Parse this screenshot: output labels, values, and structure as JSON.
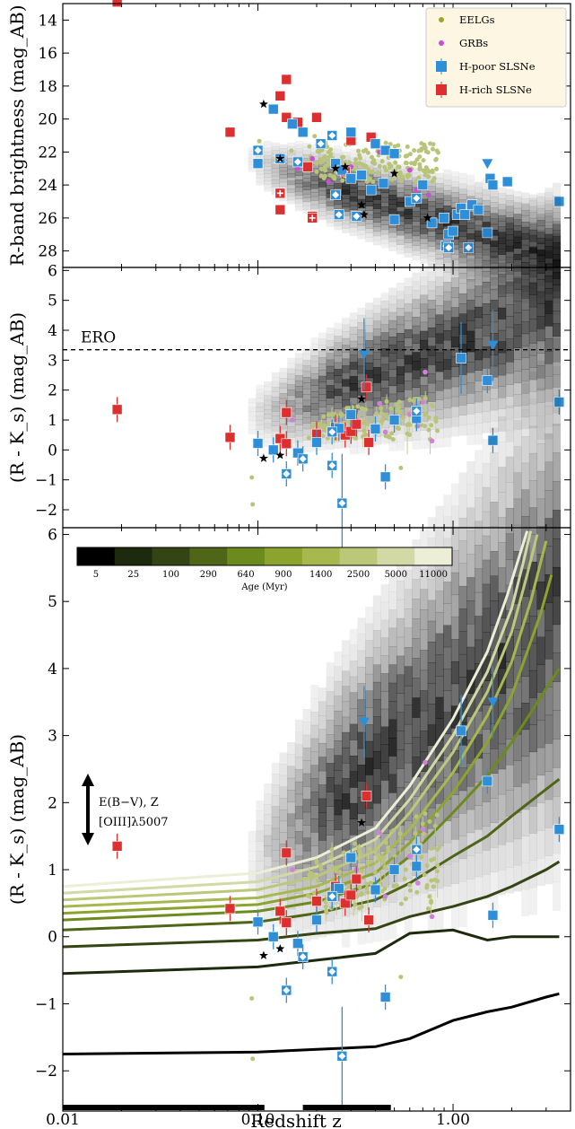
{
  "chart_data": [
    {
      "type": "scatter",
      "panel": "top",
      "ylabel": "R-band brightness (mag_AB)",
      "xscale": "log",
      "xlim": [
        0.01,
        4
      ],
      "ylim": [
        13,
        29
      ],
      "y_inverted": true,
      "yticks": [
        "14",
        "16",
        "18",
        "20",
        "22",
        "24",
        "26",
        "28"
      ],
      "legend": {
        "placement": "top-right",
        "entries": [
          {
            "label": "EELGs",
            "color": "#9fa626",
            "marker": "dot"
          },
          {
            "label": "GRBs",
            "color": "#c84fd6",
            "marker": "dot"
          },
          {
            "label": "H-poor SLSNe",
            "color": "#2f8ed8",
            "marker": "square"
          },
          {
            "label": "H-rich SLSNe",
            "color": "#dc3030",
            "marker": "square"
          }
        ]
      },
      "series": [
        {
          "name": "H-rich SLSNe",
          "marker": "square",
          "color": "#dc3030",
          "points": [
            [
              0.019,
              12.9
            ],
            [
              0.072,
              20.8
            ],
            [
              0.14,
              17.6
            ],
            [
              0.13,
              18.6
            ],
            [
              0.14,
              19.9
            ],
            [
              0.16,
              20.2
            ],
            [
              0.2,
              19.9
            ],
            [
              0.3,
              21.3
            ],
            [
              0.38,
              21.1
            ],
            [
              0.18,
              22.9
            ],
            [
              0.13,
              25.5
            ],
            [
              0.19,
              25.9
            ]
          ]
        },
        {
          "name": "H-rich SLSNe (cross)",
          "marker": "square-cross",
          "color": "#dc3030",
          "points": [
            [
              0.13,
              24.5
            ],
            [
              0.19,
              26.0
            ],
            [
              0.28,
              23.2
            ]
          ]
        },
        {
          "name": "H-poor SLSNe",
          "marker": "square",
          "color": "#2f8ed8",
          "points": [
            [
              0.12,
              19.4
            ],
            [
              0.15,
              20.3
            ],
            [
              0.17,
              20.8
            ],
            [
              0.3,
              20.8
            ],
            [
              0.4,
              21.5
            ],
            [
              0.45,
              21.9
            ],
            [
              0.5,
              22.1
            ],
            [
              0.1,
              22.7
            ],
            [
              0.25,
              22.7
            ],
            [
              0.27,
              23.1
            ],
            [
              0.3,
              23.6
            ],
            [
              0.34,
              23.4
            ],
            [
              0.38,
              24.3
            ],
            [
              0.44,
              23.9
            ],
            [
              0.5,
              26.1
            ],
            [
              0.6,
              25.0
            ],
            [
              0.78,
              26.3
            ],
            [
              0.9,
              26.0
            ],
            [
              0.95,
              27.0
            ],
            [
              1.0,
              26.8
            ],
            [
              1.05,
              25.8
            ],
            [
              1.1,
              25.4
            ],
            [
              1.15,
              25.8
            ],
            [
              1.25,
              25.2
            ],
            [
              1.35,
              25.5
            ],
            [
              1.5,
              26.9
            ],
            [
              1.55,
              23.6
            ],
            [
              1.6,
              24.0
            ],
            [
              1.9,
              23.8
            ],
            [
              3.5,
              25.0
            ],
            [
              0.7,
              24.0
            ]
          ]
        },
        {
          "name": "H-poor SLSNe (host limits)",
          "marker": "square-diamond",
          "color": "#2f8ed8",
          "points": [
            [
              0.1,
              21.9
            ],
            [
              0.16,
              22.6
            ],
            [
              0.21,
              21.5
            ],
            [
              0.24,
              21.0
            ],
            [
              0.13,
              22.4
            ],
            [
              0.25,
              24.6
            ],
            [
              0.26,
              25.8
            ],
            [
              0.32,
              25.9
            ],
            [
              0.65,
              24.8
            ],
            [
              0.92,
              27.7
            ],
            [
              0.95,
              27.8
            ],
            [
              1.2,
              27.8
            ]
          ]
        },
        {
          "name": "H-poor SLSNe (upper limits)",
          "marker": "triangle-down",
          "color": "#2f8ed8",
          "points": [
            [
              1.5,
              22.7
            ]
          ]
        },
        {
          "name": "H-poor SLSNe (star)",
          "marker": "star",
          "color": "#000000",
          "points": [
            [
              0.107,
              19.1
            ],
            [
              0.13,
              22.4
            ],
            [
              0.25,
              23.0
            ],
            [
              0.28,
              22.9
            ],
            [
              0.34,
              25.2
            ],
            [
              0.35,
              25.8
            ],
            [
              0.5,
              23.3
            ],
            [
              0.74,
              26.0
            ]
          ]
        }
      ]
    },
    {
      "type": "scatter",
      "panel": "middle",
      "ylabel": "(R - K_s) (mag_AB)",
      "xscale": "log",
      "xlim": [
        0.01,
        4
      ],
      "ylim": [
        -2.6,
        6.1
      ],
      "yticks": [
        "-2",
        "-1",
        "0",
        "1",
        "2",
        "3",
        "4",
        "5",
        "6"
      ],
      "annotation": {
        "text": "ERO",
        "y": 3.35,
        "line": "dashed"
      },
      "series": [
        {
          "name": "H-rich SLSNe",
          "marker": "square",
          "color": "#dc3030",
          "points": [
            [
              0.019,
              1.35
            ],
            [
              0.072,
              0.42
            ],
            [
              0.13,
              0.38
            ],
            [
              0.14,
              0.21
            ],
            [
              0.14,
              1.25
            ],
            [
              0.2,
              0.53
            ],
            [
              0.25,
              0.75
            ],
            [
              0.28,
              0.5
            ],
            [
              0.3,
              0.62
            ],
            [
              0.32,
              0.86
            ],
            [
              0.36,
              2.1
            ],
            [
              0.37,
              0.25
            ]
          ]
        },
        {
          "name": "H-poor SLSNe",
          "marker": "square",
          "color": "#2f8ed8",
          "points": [
            [
              0.1,
              0.22
            ],
            [
              0.12,
              0.0
            ],
            [
              0.16,
              -0.1
            ],
            [
              0.2,
              0.25
            ],
            [
              0.26,
              0.72
            ],
            [
              0.3,
              1.18
            ],
            [
              0.4,
              0.7
            ],
            [
              0.45,
              -0.9
            ],
            [
              0.5,
              1.0
            ],
            [
              0.65,
              1.05
            ],
            [
              1.1,
              3.07
            ],
            [
              1.5,
              2.32
            ],
            [
              1.6,
              0.32
            ],
            [
              3.5,
              1.6
            ]
          ]
        },
        {
          "name": "H-poor SLSNe (limits)",
          "marker": "square-diamond",
          "color": "#2f8ed8",
          "points": [
            [
              0.14,
              -0.8
            ],
            [
              0.17,
              -0.3
            ],
            [
              0.24,
              -0.52
            ],
            [
              0.27,
              -1.78
            ],
            [
              0.24,
              0.6
            ],
            [
              0.65,
              1.3
            ]
          ]
        },
        {
          "name": "H-poor SLSNe (upper limits)",
          "marker": "triangle-down",
          "color": "#2f8ed8",
          "points": [
            [
              0.35,
              3.2
            ],
            [
              1.6,
              3.5
            ]
          ]
        },
        {
          "name": "stars",
          "marker": "star",
          "color": "#000000",
          "points": [
            [
              0.107,
              -0.28
            ],
            [
              0.13,
              -0.18
            ],
            [
              0.34,
              1.7
            ]
          ]
        }
      ]
    },
    {
      "type": "line",
      "panel": "bottom",
      "xlabel": "Redshift z",
      "ylabel": "(R - K_s) (mag_AB)",
      "xscale": "log",
      "xlim": [
        0.01,
        4
      ],
      "ylim": [
        -2.6,
        6.1
      ],
      "xticks": [
        "0.01",
        "0.10",
        "1.00"
      ],
      "yticks": [
        "-2",
        "-1",
        "0",
        "1",
        "2",
        "3",
        "4",
        "5",
        "6"
      ],
      "annotation": {
        "lines": [
          "E(B−V), Z",
          "[OIII]λ5007"
        ]
      },
      "colorbar": {
        "title": "Age (Myr)",
        "labels": [
          "5",
          "25",
          "100",
          "290",
          "640",
          "900",
          "1400",
          "2500",
          "5000",
          "11000"
        ],
        "colors": [
          "#000000",
          "#1e2a0e",
          "#344415",
          "#4f6518",
          "#6d8a1f",
          "#8ca42e",
          "#a7b84e",
          "#bcc879",
          "#d2d9a4",
          "#eceed8"
        ]
      },
      "series": [
        {
          "name": "5",
          "x": [
            0.01,
            0.1,
            0.2,
            0.4,
            0.6,
            1.0,
            1.5,
            2.0,
            3.0,
            3.5
          ],
          "y": [
            -1.75,
            -1.72,
            -1.68,
            -1.64,
            -1.52,
            -1.25,
            -1.12,
            -1.05,
            -0.9,
            -0.85
          ]
        },
        {
          "name": "25",
          "x": [
            0.01,
            0.1,
            0.2,
            0.4,
            0.6,
            1.0,
            1.5,
            2.0,
            3.0,
            3.5
          ],
          "y": [
            -0.55,
            -0.45,
            -0.35,
            -0.25,
            0.05,
            0.1,
            -0.05,
            0.0,
            0.0,
            0.0
          ]
        },
        {
          "name": "100",
          "x": [
            0.01,
            0.1,
            0.2,
            0.4,
            0.6,
            1.0,
            1.5,
            2.0,
            3.0,
            3.5
          ],
          "y": [
            -0.15,
            -0.05,
            0.05,
            0.12,
            0.3,
            0.45,
            0.6,
            0.75,
            1.0,
            1.12
          ]
        },
        {
          "name": "290",
          "x": [
            0.01,
            0.1,
            0.2,
            0.4,
            0.6,
            1.0,
            1.5,
            2.0,
            3.0,
            3.5
          ],
          "y": [
            0.1,
            0.22,
            0.35,
            0.55,
            0.8,
            1.2,
            1.5,
            1.8,
            2.2,
            2.35
          ]
        },
        {
          "name": "640",
          "x": [
            0.01,
            0.1,
            0.2,
            0.4,
            0.6,
            1.0,
            1.5,
            2.0,
            3.0,
            3.5
          ],
          "y": [
            0.25,
            0.38,
            0.52,
            0.8,
            1.2,
            1.85,
            2.4,
            2.9,
            3.7,
            4.0
          ]
        },
        {
          "name": "900",
          "x": [
            0.01,
            0.1,
            0.2,
            0.4,
            0.6,
            1.0,
            1.5,
            2.0,
            2.8,
            3.2
          ],
          "y": [
            0.35,
            0.48,
            0.65,
            0.95,
            1.4,
            2.15,
            2.9,
            3.6,
            4.8,
            5.4
          ]
        },
        {
          "name": "1400",
          "x": [
            0.01,
            0.1,
            0.2,
            0.4,
            0.6,
            1.0,
            1.5,
            2.0,
            2.5,
            3.0
          ],
          "y": [
            0.45,
            0.58,
            0.75,
            1.1,
            1.6,
            2.45,
            3.3,
            4.1,
            5.0,
            5.9
          ]
        },
        {
          "name": "2500",
          "x": [
            0.01,
            0.1,
            0.2,
            0.4,
            0.6,
            1.0,
            1.5,
            2.0,
            2.4,
            2.7
          ],
          "y": [
            0.55,
            0.7,
            0.9,
            1.28,
            1.85,
            2.75,
            3.65,
            4.55,
            5.4,
            6.0
          ]
        },
        {
          "name": "5000",
          "x": [
            0.01,
            0.1,
            0.2,
            0.4,
            0.6,
            1.0,
            1.5,
            2.0,
            2.3,
            2.5
          ],
          "y": [
            0.65,
            0.82,
            1.04,
            1.45,
            2.05,
            3.0,
            3.95,
            4.9,
            5.6,
            6.05
          ]
        },
        {
          "name": "11000",
          "x": [
            0.01,
            0.1,
            0.2,
            0.4,
            0.6,
            1.0,
            1.5,
            1.9,
            2.2,
            2.4
          ],
          "y": [
            0.75,
            0.95,
            1.18,
            1.62,
            2.25,
            3.25,
            4.25,
            5.1,
            5.7,
            6.05
          ]
        }
      ],
      "points": [
        {
          "name": "H-rich SLSNe",
          "marker": "square",
          "color": "#dc3030",
          "points": [
            [
              0.019,
              1.35
            ],
            [
              0.072,
              0.42
            ],
            [
              0.13,
              0.38
            ],
            [
              0.14,
              0.21
            ],
            [
              0.14,
              1.25
            ],
            [
              0.2,
              0.53
            ],
            [
              0.25,
              0.75
            ],
            [
              0.28,
              0.5
            ],
            [
              0.3,
              0.62
            ],
            [
              0.32,
              0.86
            ],
            [
              0.36,
              2.1
            ],
            [
              0.37,
              0.25
            ]
          ]
        },
        {
          "name": "H-poor SLSNe",
          "marker": "square",
          "color": "#2f8ed8",
          "points": [
            [
              0.1,
              0.22
            ],
            [
              0.12,
              0.0
            ],
            [
              0.16,
              -0.1
            ],
            [
              0.2,
              0.25
            ],
            [
              0.26,
              0.72
            ],
            [
              0.3,
              1.18
            ],
            [
              0.4,
              0.7
            ],
            [
              0.45,
              -0.9
            ],
            [
              0.5,
              1.0
            ],
            [
              0.65,
              1.05
            ],
            [
              1.1,
              3.07
            ],
            [
              1.5,
              2.32
            ],
            [
              1.6,
              0.32
            ],
            [
              3.5,
              1.6
            ]
          ]
        },
        {
          "name": "H-poor SLSNe (limits)",
          "marker": "square-diamond",
          "color": "#2f8ed8",
          "points": [
            [
              0.14,
              -0.8
            ],
            [
              0.17,
              -0.3
            ],
            [
              0.24,
              -0.52
            ],
            [
              0.27,
              -1.78
            ],
            [
              0.24,
              0.6
            ],
            [
              0.65,
              1.3
            ]
          ]
        },
        {
          "name": "H-poor SLSNe (upper limits)",
          "marker": "triangle-down",
          "color": "#2f8ed8",
          "points": [
            [
              0.35,
              3.2
            ],
            [
              1.6,
              3.5
            ]
          ]
        },
        {
          "name": "stars",
          "marker": "star",
          "color": "#000000",
          "points": [
            [
              0.107,
              -0.28
            ],
            [
              0.13,
              -0.18
            ],
            [
              0.34,
              1.7
            ]
          ]
        }
      ]
    }
  ]
}
